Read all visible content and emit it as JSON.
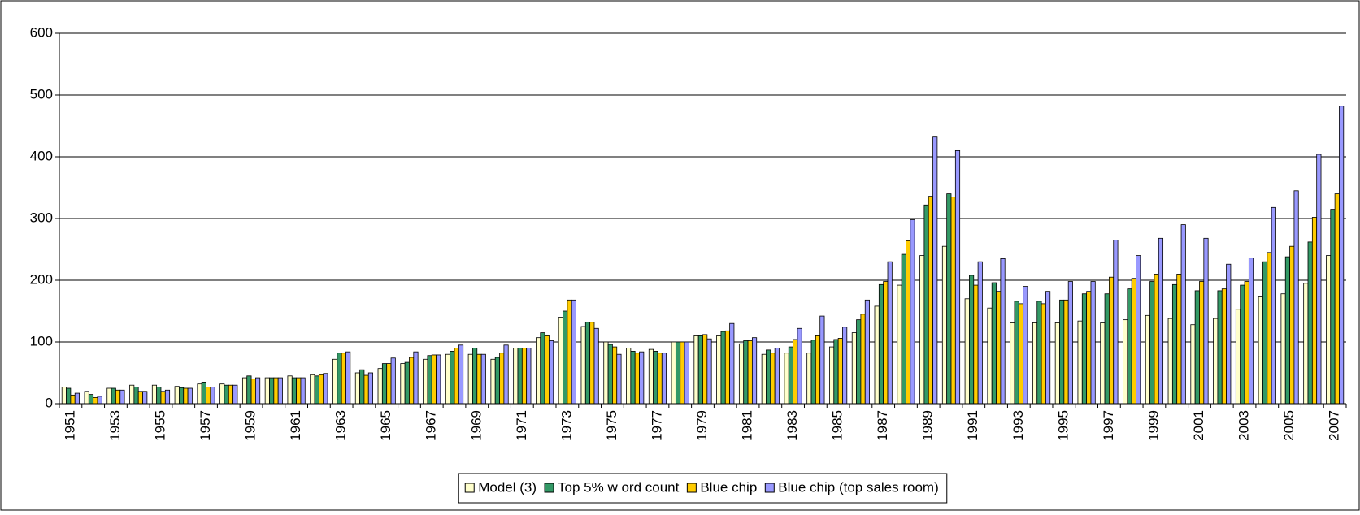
{
  "chart_data": {
    "type": "bar",
    "categories": [
      "1951",
      null,
      "1953",
      null,
      "1955",
      null,
      "1957",
      null,
      "1959",
      null,
      "1961",
      null,
      "1963",
      null,
      "1965",
      null,
      "1967",
      null,
      "1969",
      null,
      "1971",
      null,
      "1973",
      null,
      "1975",
      null,
      "1977",
      null,
      "1979",
      null,
      "1981",
      null,
      "1983",
      null,
      "1985",
      null,
      "1987",
      null,
      "1989",
      null,
      "1991",
      null,
      "1993",
      null,
      "1995",
      null,
      "1997",
      null,
      "1999",
      null,
      "2001",
      null,
      "2003",
      null,
      "2005",
      null,
      "2007"
    ],
    "series": [
      {
        "name": "Model (3)",
        "color": "#ffffcc",
        "values": [
          27,
          20,
          25,
          30,
          30,
          28,
          32,
          32,
          42,
          42,
          45,
          47,
          72,
          50,
          57,
          65,
          72,
          80,
          80,
          72,
          90,
          107,
          140,
          125,
          100,
          90,
          88,
          100,
          110,
          110,
          97,
          80,
          82,
          82,
          92,
          115,
          158,
          192,
          240,
          255,
          170,
          155,
          131,
          131,
          131,
          134,
          131,
          136,
          143,
          138,
          128,
          138,
          153,
          173,
          178,
          195,
          240
        ]
      },
      {
        "name": "Top 5% w ord count",
        "color": "#339966",
        "values": [
          25,
          15,
          25,
          27,
          27,
          26,
          35,
          30,
          45,
          42,
          42,
          45,
          82,
          55,
          65,
          67,
          78,
          85,
          90,
          75,
          90,
          115,
          150,
          132,
          96,
          85,
          85,
          100,
          110,
          117,
          102,
          87,
          92,
          103,
          104,
          136,
          193,
          242,
          322,
          340,
          208,
          196,
          166,
          166,
          168,
          178,
          178,
          186,
          198,
          193,
          183,
          183,
          192,
          230,
          238,
          262,
          315
        ]
      },
      {
        "name": "Blue chip",
        "color": "#ffcc00",
        "values": [
          14,
          10,
          22,
          20,
          20,
          25,
          27,
          30,
          40,
          42,
          42,
          47,
          82,
          46,
          65,
          75,
          79,
          90,
          80,
          82,
          90,
          110,
          168,
          132,
          92,
          82,
          82,
          100,
          112,
          118,
          102,
          82,
          104,
          110,
          106,
          145,
          198,
          264,
          336,
          335,
          192,
          182,
          162,
          162,
          168,
          182,
          205,
          203,
          210,
          210,
          198,
          186,
          198,
          245,
          255,
          302,
          340
        ]
      },
      {
        "name": "Blue chip (top sales room)",
        "color": "#9999ff",
        "values": [
          17,
          12,
          22,
          20,
          22,
          25,
          27,
          30,
          42,
          42,
          42,
          49,
          84,
          50,
          74,
          84,
          79,
          95,
          80,
          95,
          90,
          102,
          168,
          122,
          80,
          84,
          82,
          100,
          105,
          130,
          107,
          90,
          122,
          142,
          124,
          168,
          230,
          298,
          432,
          410,
          230,
          235,
          190,
          182,
          198,
          198,
          265,
          240,
          268,
          290,
          268,
          226,
          236,
          318,
          345,
          404,
          482
        ]
      }
    ],
    "ylim": [
      0,
      600
    ],
    "yticks": [
      0,
      100,
      200,
      300,
      400,
      500,
      600
    ],
    "grid": true,
    "legend": "bottom"
  }
}
